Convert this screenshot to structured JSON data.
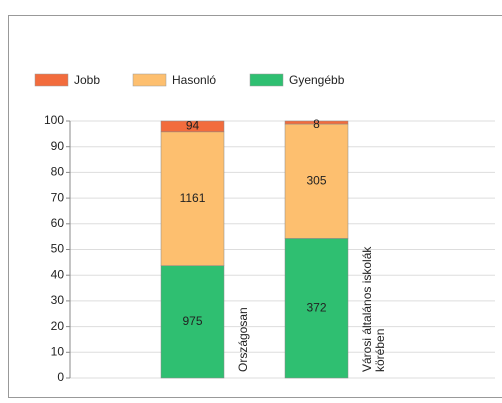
{
  "chart_data": {
    "type": "bar",
    "stacking": "percent",
    "categories": [
      "Országosan",
      "Városi általános iskolák körében"
    ],
    "series": [
      {
        "name": "Gyengébb",
        "color": "#2fbf71",
        "values": [
          975,
          372
        ]
      },
      {
        "name": "Hasonló",
        "color": "#fdbf6f",
        "values": [
          1161,
          305
        ]
      },
      {
        "name": "Jobb",
        "color": "#f26c3d",
        "values": [
          94,
          8
        ]
      }
    ],
    "legend_order": [
      2,
      1,
      0
    ],
    "ylim": [
      0,
      100
    ],
    "yticks": [
      0,
      10,
      20,
      30,
      40,
      50,
      60,
      70,
      80,
      90,
      100
    ],
    "grid": true
  }
}
